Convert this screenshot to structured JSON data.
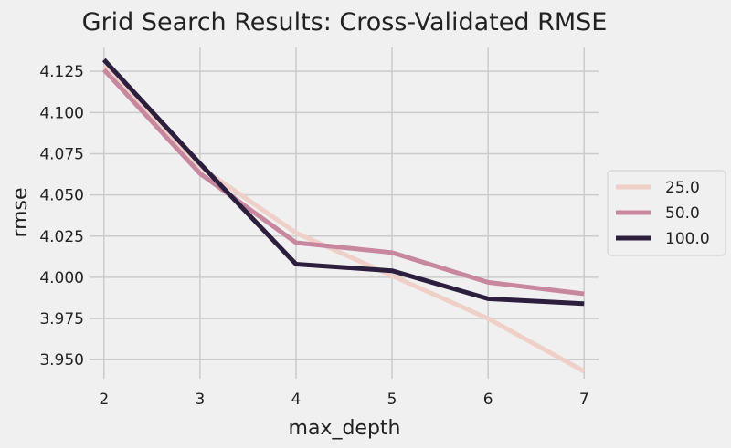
{
  "chart_data": {
    "type": "line",
    "title": "Grid Search Results: Cross-Validated RMSE",
    "xlabel": "max_depth",
    "ylabel": "rmse",
    "x": [
      2,
      3,
      4,
      5,
      6,
      7
    ],
    "xlim": [
      1.85,
      7.15
    ],
    "ylim": [
      3.9385,
      4.1395
    ],
    "xticks": [
      "2",
      "3",
      "4",
      "5",
      "6",
      "7"
    ],
    "yticks": [
      "3.950",
      "3.975",
      "4.000",
      "4.025",
      "4.050",
      "4.075",
      "4.100",
      "4.125"
    ],
    "grid": true,
    "legend_position": "right",
    "series": [
      {
        "name": "25.0",
        "color": "#efd0c9",
        "values": [
          4.128,
          4.067,
          4.027,
          4.001,
          3.975,
          3.943
        ]
      },
      {
        "name": "50.0",
        "color": "#c7879f",
        "values": [
          4.126,
          4.063,
          4.021,
          4.015,
          3.997,
          3.99
        ]
      },
      {
        "name": "100.0",
        "color": "#2c1e3d",
        "values": [
          4.132,
          4.069,
          4.008,
          4.004,
          3.987,
          3.984
        ]
      }
    ]
  }
}
